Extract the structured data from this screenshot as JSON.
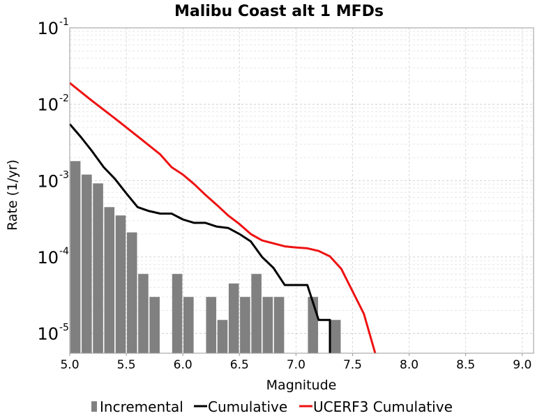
{
  "chart_data": {
    "type": "bar+line",
    "title": "Malibu Coast alt 1 MFDs",
    "xlabel": "Magnitude",
    "ylabel": "Rate (1/yr)",
    "xlim": [
      5.0,
      9.1
    ],
    "ylim": [
      5.5e-06,
      0.1
    ],
    "yscale": "log",
    "x_ticks": [
      "5.0",
      "5.5",
      "6.0",
      "6.5",
      "7.0",
      "7.5",
      "8.0",
      "8.5",
      "9.0"
    ],
    "x_tick_values": [
      5.0,
      5.5,
      6.0,
      6.5,
      7.0,
      7.5,
      8.0,
      8.5,
      9.0
    ],
    "y_ticks": [
      {
        "base": "10",
        "exp": "-1",
        "value": 0.1
      },
      {
        "base": "10",
        "exp": "-2",
        "value": 0.01
      },
      {
        "base": "10",
        "exp": "-3",
        "value": 0.001
      },
      {
        "base": "10",
        "exp": "-4",
        "value": 0.0001
      },
      {
        "base": "10",
        "exp": "-5",
        "value": 1e-05
      }
    ],
    "grid": true,
    "legend_position": "bottom",
    "series": [
      {
        "name": "Incremental",
        "type": "bar",
        "color": "#808080",
        "bar_width": 0.09,
        "x": [
          5.05,
          5.15,
          5.25,
          5.35,
          5.45,
          5.55,
          5.65,
          5.75,
          5.95,
          6.05,
          6.25,
          6.35,
          6.45,
          6.55,
          6.65,
          6.75,
          6.85,
          7.15,
          7.35
        ],
        "values": [
          0.0018,
          0.0012,
          0.00092,
          0.00045,
          0.00035,
          0.00021,
          6e-05,
          3e-05,
          6e-05,
          3e-05,
          3e-05,
          1.5e-05,
          4.5e-05,
          3e-05,
          6e-05,
          3e-05,
          3e-05,
          3e-05,
          1.5e-05
        ]
      },
      {
        "name": "Cumulative",
        "type": "line",
        "color": "#000000",
        "x": [
          5.0,
          5.1,
          5.2,
          5.3,
          5.4,
          5.5,
          5.6,
          5.7,
          5.8,
          5.9,
          6.0,
          6.1,
          6.2,
          6.3,
          6.4,
          6.5,
          6.6,
          6.7,
          6.8,
          6.9,
          7.0,
          7.1,
          7.2,
          7.3,
          7.3
        ],
        "values": [
          0.0055,
          0.0037,
          0.0024,
          0.0015,
          0.00105,
          0.00068,
          0.00045,
          0.0004,
          0.00037,
          0.00037,
          0.00031,
          0.00028,
          0.00028,
          0.00025,
          0.00024,
          0.0002,
          0.00016,
          0.0001,
          7.2e-05,
          4.3e-05,
          4.3e-05,
          4.3e-05,
          1.5e-05,
          1.5e-05,
          5.5e-06
        ]
      },
      {
        "name": "UCERF3 Cumulative",
        "type": "line",
        "color": "#ee1111",
        "x": [
          5.0,
          5.2,
          5.4,
          5.6,
          5.8,
          5.9,
          6.0,
          6.1,
          6.2,
          6.3,
          6.4,
          6.5,
          6.6,
          6.7,
          6.9,
          7.0,
          7.1,
          7.2,
          7.3,
          7.4,
          7.6,
          7.7
        ],
        "values": [
          0.019,
          0.011,
          0.0065,
          0.0038,
          0.0022,
          0.0015,
          0.0012,
          0.0009,
          0.00065,
          0.00048,
          0.00035,
          0.00027,
          0.0002,
          0.000165,
          0.000138,
          0.000133,
          0.00013,
          0.00012,
          0.000102,
          7e-05,
          1.8e-05,
          5.5e-06
        ]
      }
    ]
  }
}
